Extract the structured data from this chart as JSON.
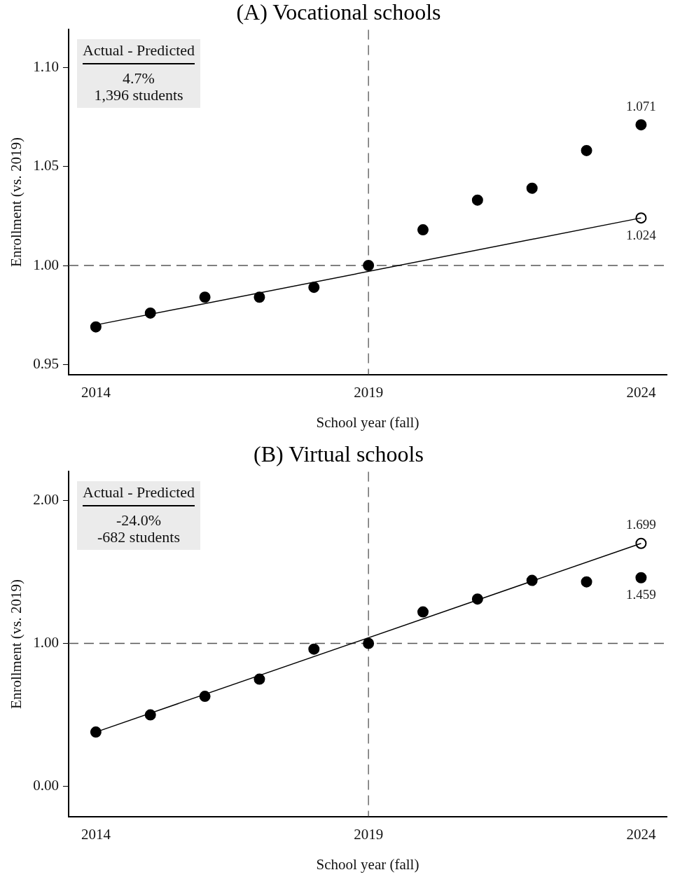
{
  "chart_data": [
    {
      "type": "scatter",
      "title": "(A) Vocational schools",
      "xlabel": "School year (fall)",
      "ylabel": "Enrollment (vs. 2019)",
      "xlim": [
        2013.5,
        2024.47
      ],
      "xticks": [
        2014,
        2019,
        2024
      ],
      "ylim": [
        0.945,
        1.119
      ],
      "yticks": [
        {
          "value": 0.95,
          "label": "0.95"
        },
        {
          "value": 1.0,
          "label": "1.00"
        },
        {
          "value": 1.05,
          "label": "1.05"
        },
        {
          "value": 1.1,
          "label": "1.10"
        }
      ],
      "grid": false,
      "legend": false,
      "marker": "circle",
      "series": [
        {
          "type": "line",
          "color": "#000000",
          "x": [
            2014,
            2024
          ],
          "values": [
            0.97,
            1.024
          ],
          "marker": "none"
        },
        {
          "color": "#000000",
          "x": [
            2014,
            2015,
            2016,
            2017,
            2018,
            2019,
            2020,
            2021,
            2022,
            2023,
            2024
          ],
          "values": [
            0.969,
            0.976,
            0.984,
            0.984,
            0.989,
            1.0,
            1.018,
            1.033,
            1.039,
            1.058,
            1.071
          ],
          "value_labels": [
            null,
            null,
            null,
            null,
            null,
            null,
            null,
            null,
            null,
            null,
            "1.071"
          ]
        },
        {
          "color": "#ffffff",
          "x": [
            2024
          ],
          "values": [
            1.024
          ],
          "value_labels": [
            "1.024"
          ]
        }
      ],
      "ref_lines": [
        {
          "axis": "x",
          "value": 2019,
          "line_style": "dashed",
          "color": "#555555"
        },
        {
          "axis": "y",
          "value": 1.0,
          "line_style": "dashed",
          "color": "#555555"
        }
      ],
      "annotations": [
        "Actual - Predicted",
        "4.7%",
        "1,396 students"
      ]
    },
    {
      "type": "scatter",
      "title": "(B) Virtual schools",
      "xlabel": "School year (fall)",
      "ylabel": "Enrollment (vs. 2019)",
      "xlim": [
        2013.5,
        2024.47
      ],
      "xticks": [
        2014,
        2019,
        2024
      ],
      "ylim": [
        -0.21,
        2.2
      ],
      "yticks": [
        {
          "value": 0,
          "label": "0.00"
        },
        {
          "value": 1,
          "label": "1.00"
        },
        {
          "value": 2,
          "label": "2.00"
        }
      ],
      "grid": false,
      "legend": false,
      "marker": "circle",
      "series": [
        {
          "type": "line",
          "color": "#000000",
          "x": [
            2014,
            2024
          ],
          "values": [
            0.38,
            1.699
          ],
          "marker": "none"
        },
        {
          "color": "#000000",
          "x": [
            2014,
            2015,
            2016,
            2017,
            2018,
            2019,
            2020,
            2021,
            2022,
            2023,
            2024
          ],
          "values": [
            0.38,
            0.5,
            0.63,
            0.75,
            0.96,
            1.0,
            1.22,
            1.31,
            1.44,
            1.43,
            1.459
          ],
          "value_labels": [
            null,
            null,
            null,
            null,
            null,
            null,
            null,
            null,
            null,
            null,
            "1.459"
          ]
        },
        {
          "color": "#ffffff",
          "x": [
            2024
          ],
          "values": [
            1.699
          ],
          "value_labels": [
            "1.699"
          ]
        }
      ],
      "ref_lines": [
        {
          "axis": "x",
          "value": 2019,
          "line_style": "dashed",
          "color": "#555555"
        },
        {
          "axis": "y",
          "value": 1.0,
          "line_style": "dashed",
          "color": "#555555"
        }
      ],
      "annotations": [
        "Actual - Predicted",
        "-24.0%",
        "-682 students"
      ]
    }
  ]
}
